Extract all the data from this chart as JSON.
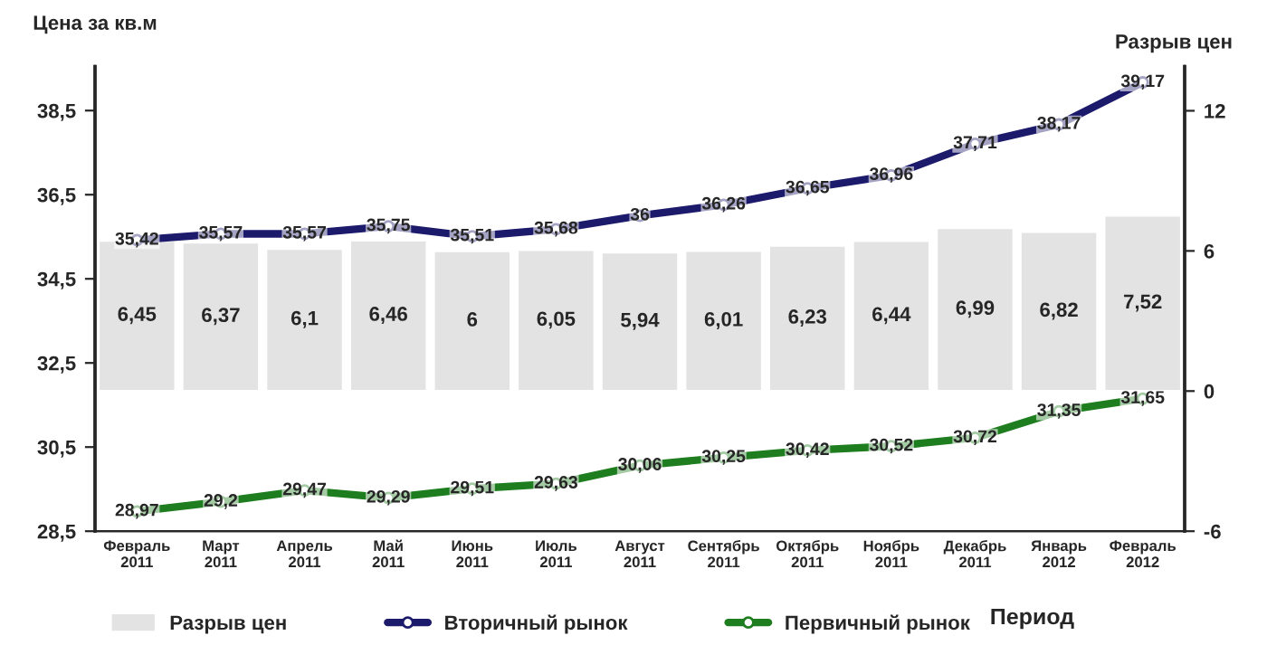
{
  "chart_data": {
    "type": "line",
    "categories": [
      "Февраль 2011",
      "Март 2011",
      "Апрель 2011",
      "Май 2011",
      "Июнь 2011",
      "Июль 2011",
      "Август 2011",
      "Сентябрь 2011",
      "Октябрь 2011",
      "Ноябрь 2011",
      "Декабрь 2011",
      "Январь 2012",
      "Февраль 2012"
    ],
    "series": [
      {
        "name": "Разрыв цен",
        "type": "bar",
        "axis": "y2",
        "color": "#e3e3e3",
        "values": [
          6.45,
          6.37,
          6.1,
          6.46,
          6,
          6.05,
          5.94,
          6.01,
          6.23,
          6.44,
          6.99,
          6.82,
          7.52
        ],
        "value_labels": [
          "6,45",
          "6,37",
          "6,1",
          "6,46",
          "6",
          "6,05",
          "5,94",
          "6,01",
          "6,23",
          "6,44",
          "6,99",
          "6,82",
          "7,52"
        ]
      },
      {
        "name": "Вторичный рынок",
        "color": "#1c1a6b",
        "values": [
          35.42,
          35.57,
          35.57,
          35.75,
          35.51,
          35.68,
          36,
          36.26,
          36.65,
          36.96,
          37.71,
          38.17,
          39.17
        ],
        "value_labels": [
          "35,42",
          "35,57",
          "35,57",
          "35,75",
          "35,51",
          "35,68",
          "36",
          "36,26",
          "36,65",
          "36,96",
          "37,71",
          "38,17",
          "39,17"
        ]
      },
      {
        "name": "Первичный рынок",
        "color": "#1e7d1e",
        "values": [
          28.97,
          29.2,
          29.47,
          29.29,
          29.51,
          29.63,
          30.06,
          30.25,
          30.42,
          30.52,
          30.72,
          31.35,
          31.65
        ],
        "value_labels": [
          "28,97",
          "29,2",
          "29,47",
          "29,29",
          "29,51",
          "29,63",
          "30,06",
          "30,25",
          "30,42",
          "30,52",
          "30,72",
          "31,35",
          "31,65"
        ]
      }
    ],
    "ylabel": "Цена за кв.м",
    "y2label": "Разрыв цен",
    "xlabel": "Период",
    "ylim": [
      28.5,
      39.55
    ],
    "yticks": [
      {
        "value": 28.5,
        "label": "28,5"
      },
      {
        "value": 30.5,
        "label": "30,5"
      },
      {
        "value": 32.5,
        "label": "32,5"
      },
      {
        "value": 34.5,
        "label": "34,5"
      },
      {
        "value": 36.5,
        "label": "36,5"
      },
      {
        "value": 38.5,
        "label": "38,5"
      }
    ],
    "y2lim": [
      -6,
      13.9
    ],
    "y2ticks": [
      -6,
      0,
      6,
      12
    ],
    "marker": "circle",
    "line_style": "solid",
    "legend": "bottom",
    "grid": false
  }
}
